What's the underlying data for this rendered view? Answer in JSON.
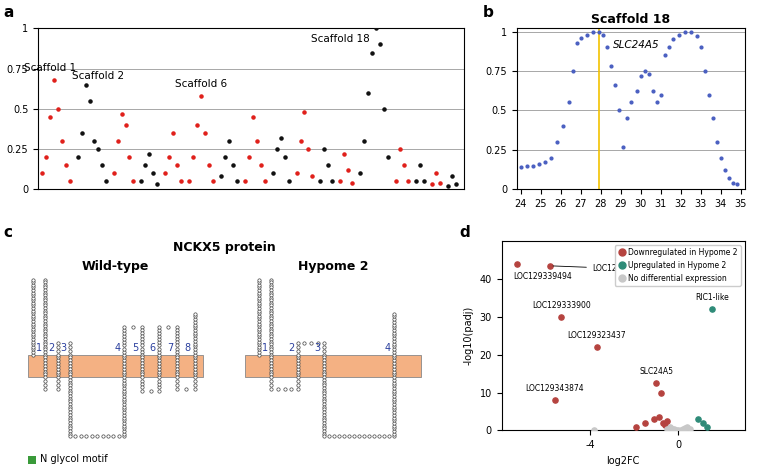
{
  "chart_data": [
    {
      "panel": "a",
      "type": "scatter",
      "series": [
        {
          "color": "#e0201b",
          "x": [
            1,
            2,
            3,
            4,
            5,
            6,
            7,
            8
          ],
          "values": [
            0.1,
            0.2,
            0.45,
            0.68,
            0.5,
            0.3,
            0.15,
            0.05
          ]
        },
        {
          "color": "#111111",
          "x": [
            10,
            11,
            12,
            13,
            14,
            15,
            16,
            17
          ],
          "values": [
            0.2,
            0.35,
            0.65,
            0.55,
            0.3,
            0.25,
            0.15,
            0.05
          ]
        },
        {
          "color": "#e0201b",
          "x": [
            19,
            20,
            21,
            22,
            23,
            24
          ],
          "values": [
            0.1,
            0.3,
            0.47,
            0.4,
            0.2,
            0.05
          ]
        },
        {
          "color": "#111111",
          "x": [
            26,
            27,
            28,
            29,
            30
          ],
          "values": [
            0.05,
            0.15,
            0.22,
            0.1,
            0.03
          ]
        },
        {
          "color": "#e0201b",
          "x": [
            32,
            33,
            34,
            35,
            36
          ],
          "values": [
            0.1,
            0.2,
            0.35,
            0.15,
            0.05
          ]
        },
        {
          "color": "#e0201b",
          "x": [
            38,
            39,
            40,
            41,
            42,
            43,
            44
          ],
          "values": [
            0.05,
            0.2,
            0.4,
            0.58,
            0.35,
            0.15,
            0.05
          ]
        },
        {
          "color": "#111111",
          "x": [
            46,
            47,
            48,
            49,
            50
          ],
          "values": [
            0.08,
            0.2,
            0.3,
            0.15,
            0.05
          ]
        },
        {
          "color": "#e0201b",
          "x": [
            52,
            53,
            54,
            55,
            56,
            57
          ],
          "values": [
            0.05,
            0.2,
            0.45,
            0.3,
            0.15,
            0.05
          ]
        },
        {
          "color": "#111111",
          "x": [
            59,
            60,
            61,
            62,
            63
          ],
          "values": [
            0.1,
            0.25,
            0.32,
            0.2,
            0.05
          ]
        },
        {
          "color": "#e0201b",
          "x": [
            65,
            66,
            67,
            68,
            69
          ],
          "values": [
            0.1,
            0.3,
            0.48,
            0.25,
            0.08
          ]
        },
        {
          "color": "#111111",
          "x": [
            71,
            72,
            73,
            74
          ],
          "values": [
            0.05,
            0.25,
            0.15,
            0.05
          ]
        },
        {
          "color": "#e0201b",
          "x": [
            76,
            77,
            78,
            79
          ],
          "values": [
            0.05,
            0.22,
            0.12,
            0.04
          ]
        },
        {
          "color": "#111111",
          "x": [
            81,
            82,
            83,
            84,
            85,
            86,
            87,
            88
          ],
          "values": [
            0.1,
            0.3,
            0.6,
            0.85,
            1.0,
            0.9,
            0.5,
            0.2
          ]
        },
        {
          "color": "#e0201b",
          "x": [
            90,
            91,
            92,
            93
          ],
          "values": [
            0.05,
            0.25,
            0.15,
            0.05
          ]
        },
        {
          "color": "#111111",
          "x": [
            95,
            96,
            97
          ],
          "values": [
            0.05,
            0.15,
            0.05
          ]
        },
        {
          "color": "#e0201b",
          "x": [
            99,
            100,
            101
          ],
          "values": [
            0.03,
            0.1,
            0.04
          ]
        },
        {
          "color": "#111111",
          "x": [
            103,
            104,
            105
          ],
          "values": [
            0.02,
            0.08,
            0.03
          ]
        }
      ],
      "xlim": [
        0,
        107
      ],
      "ylim": [
        0,
        1
      ],
      "yticks": [
        0,
        0.25,
        0.5,
        0.75,
        1
      ],
      "grid": true,
      "tick_labels": "y",
      "annotations": [
        {
          "text": "Scaffold 1",
          "x": 3,
          "y": 0.72
        },
        {
          "text": "Scaffold 2",
          "x": 15,
          "y": 0.67
        },
        {
          "text": "Scaffold 6",
          "x": 41,
          "y": 0.62
        },
        {
          "text": "Scaffold 18",
          "x": 76,
          "y": 0.9
        }
      ]
    },
    {
      "panel": "b",
      "type": "scatter",
      "title": "Scaffold 18",
      "color": "#4a5fc1",
      "x": [
        24.0,
        24.3,
        24.6,
        24.9,
        25.2,
        25.5,
        25.8,
        26.1,
        26.4,
        26.6,
        26.8,
        27.0,
        27.3,
        27.6,
        27.9,
        28.1,
        28.3,
        28.5,
        28.7,
        28.9,
        29.1,
        29.3,
        29.5,
        29.8,
        30.0,
        30.2,
        30.4,
        30.6,
        30.8,
        31.0,
        31.2,
        31.4,
        31.6,
        31.9,
        32.2,
        32.5,
        32.8,
        33.0,
        33.2,
        33.4,
        33.6,
        33.8,
        34.0,
        34.2,
        34.4,
        34.6,
        34.8
      ],
      "values": [
        0.14,
        0.15,
        0.15,
        0.16,
        0.17,
        0.2,
        0.3,
        0.4,
        0.55,
        0.75,
        0.93,
        0.96,
        0.98,
        1.0,
        1.0,
        0.98,
        0.9,
        0.78,
        0.66,
        0.5,
        0.27,
        0.45,
        0.55,
        0.62,
        0.72,
        0.75,
        0.73,
        0.62,
        0.55,
        0.6,
        0.85,
        0.9,
        0.95,
        0.98,
        1.0,
        1.0,
        0.97,
        0.9,
        0.75,
        0.6,
        0.45,
        0.3,
        0.2,
        0.12,
        0.07,
        0.04,
        0.03
      ],
      "xlim": [
        23.8,
        35.2
      ],
      "xticks": [
        24,
        25,
        26,
        27,
        28,
        29,
        30,
        31,
        32,
        33,
        34,
        35
      ],
      "ylim": [
        0,
        1.02
      ],
      "yticks": [
        0,
        0.25,
        0.5,
        0.75,
        1
      ],
      "grid": true,
      "reference_lines": [
        {
          "x": 27.9,
          "color": "#f2c200"
        }
      ],
      "annotations": [
        {
          "text": "SLC24A5",
          "x": 28.6,
          "y": 0.88
        }
      ]
    },
    {
      "panel": "d",
      "type": "scatter",
      "x_label": "log2FC",
      "y_label": "-log10(padj)",
      "series": [
        {
          "name": "Downregulated in Hypome 2",
          "color": "#b5433f",
          "x": [
            -7.3,
            -5.8,
            -5.3,
            -3.7,
            -5.6,
            -1.0,
            -0.8,
            -1.9,
            -1.5,
            -1.1,
            -0.9,
            -0.7,
            -0.6,
            -0.5
          ],
          "values": [
            44,
            43.5,
            30,
            22,
            8,
            12.5,
            10,
            1,
            2,
            3,
            3.5,
            2,
            1.5,
            2.5
          ]
        },
        {
          "name": "Upregulated in Hypome 2",
          "color": "#2e8b78",
          "x": [
            1.5,
            0.9,
            1.1,
            1.3
          ],
          "values": [
            32,
            3,
            2,
            1
          ]
        },
        {
          "name": "No differential expression",
          "color": "#c8c8c8",
          "x": [
            -3.8,
            -0.5,
            -0.4,
            -0.3,
            -0.2,
            -0.1,
            0,
            0.1,
            0.2,
            0.3,
            0.4,
            0.5
          ],
          "values": [
            0.2,
            0.3,
            1,
            0.5,
            0.3,
            0.1,
            0.1,
            0.2,
            0.4,
            0.6,
            0.8,
            0.5
          ]
        }
      ],
      "legend": "upper right",
      "xlim": [
        -8,
        3
      ],
      "xticks": [
        -4,
        0
      ],
      "ylim": [
        0,
        50
      ],
      "yticks": [
        0,
        10,
        20,
        30,
        40
      ],
      "annotations": [
        {
          "text": "LOC129339494",
          "x": -7.3,
          "y": 44
        },
        {
          "text": "LOC129332691",
          "x": -5.8,
          "y": 43.5
        },
        {
          "text": "LOC129333900",
          "x": -5.3,
          "y": 30
        },
        {
          "text": "RIC1-like",
          "x": 1.5,
          "y": 32
        },
        {
          "text": "LOC129323437",
          "x": -3.7,
          "y": 22
        },
        {
          "text": "SLC24A5",
          "x": -1.0,
          "y": 12.5
        },
        {
          "text": "LOC129343874",
          "x": -5.6,
          "y": 8
        }
      ]
    }
  ],
  "diagram": {
    "panel": "c",
    "title": "NCKX5 protein",
    "proteins": [
      {
        "label": "Wild-type",
        "helices": [
          1,
          2,
          3,
          4,
          5,
          6,
          7,
          8
        ]
      },
      {
        "label": "Hypome 2",
        "helices": [
          1,
          2,
          3,
          4
        ]
      }
    ],
    "legend": {
      "label": "N glycol motif",
      "color": "#3a9a3a"
    }
  }
}
